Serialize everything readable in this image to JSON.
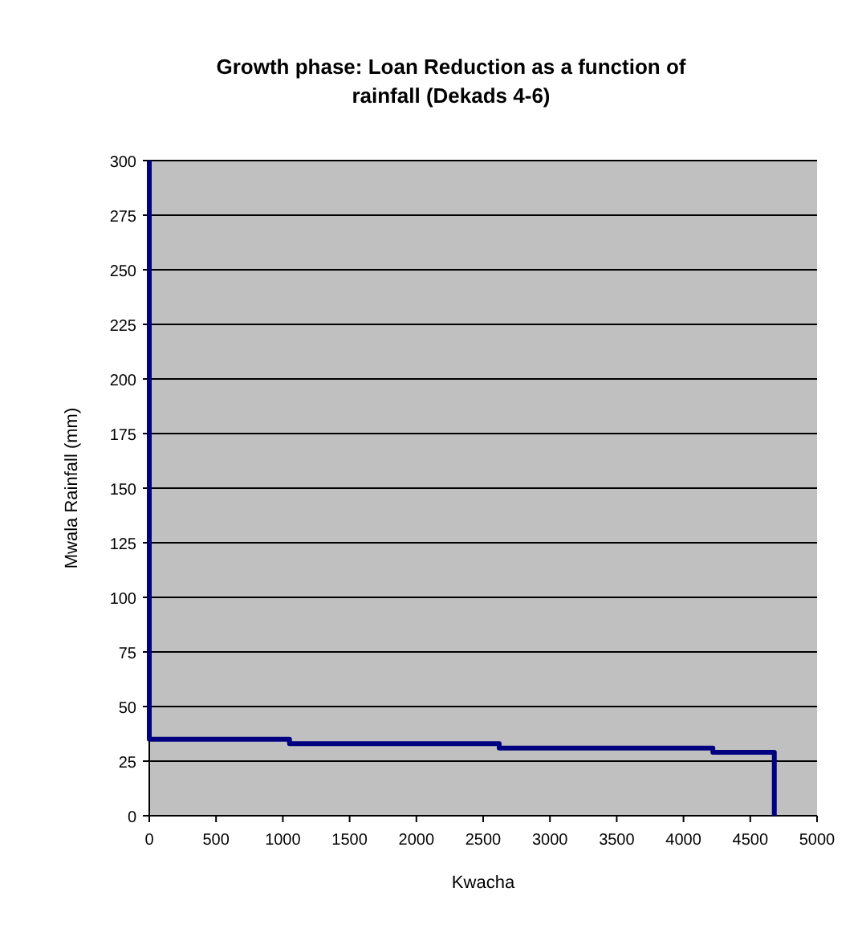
{
  "chart_data": {
    "type": "line",
    "title": "Growth phase: Loan Reduction as a function of rainfall (Dekads 4-6)",
    "xlabel": "Kwacha",
    "ylabel": "Mwala Rainfall (mm)",
    "x": [
      0,
      0,
      1050,
      1050,
      2620,
      2620,
      4220,
      4220,
      4680,
      4680
    ],
    "series": [
      {
        "color": "#000080",
        "values": [
          300,
          35,
          35,
          33,
          33,
          31,
          31,
          29,
          29,
          0
        ]
      }
    ],
    "xlim": [
      0,
      5000
    ],
    "xticks": [
      0,
      500,
      1000,
      1500,
      2000,
      2500,
      3000,
      3500,
      4000,
      4500,
      5000
    ],
    "ylim": [
      0,
      300
    ],
    "yticks": [
      0,
      25,
      50,
      75,
      100,
      125,
      150,
      175,
      200,
      225,
      250,
      275,
      300
    ],
    "grid": "y",
    "marker": "none",
    "line_style": "solid"
  }
}
